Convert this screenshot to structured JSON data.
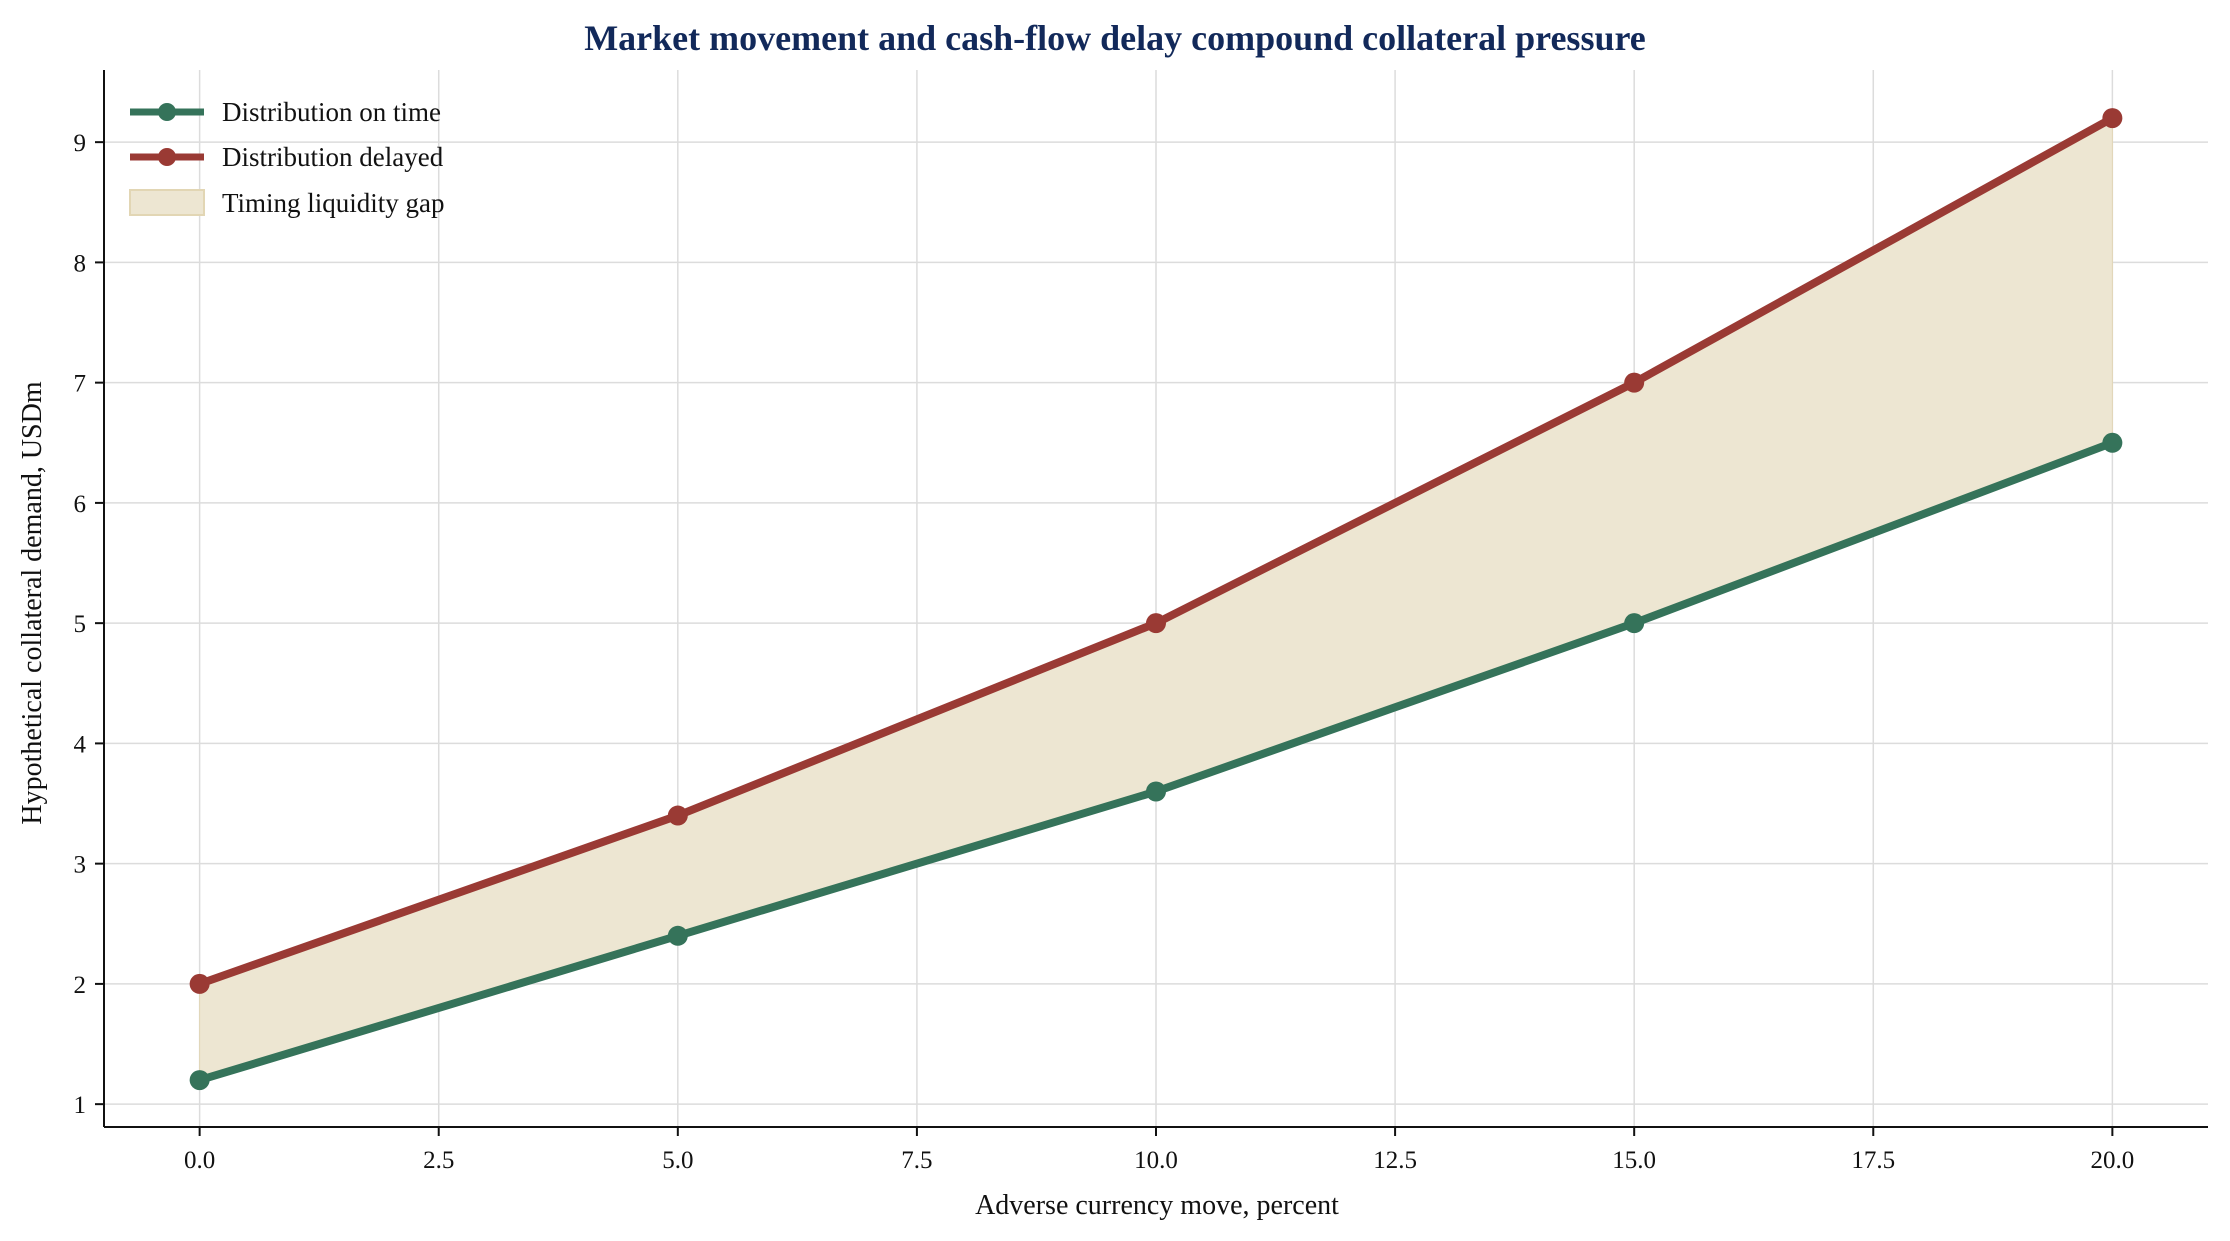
{
  "chart_data": {
    "type": "line",
    "title": "Market movement and cash-flow delay compound collateral pressure",
    "xlabel": "Adverse currency move, percent",
    "ylabel": "Hypothetical collateral demand, USDm",
    "x": [
      0,
      5,
      10,
      15,
      20
    ],
    "xlim": [
      -1,
      21
    ],
    "ylim": [
      0.81,
      9.6
    ],
    "xticks": [
      "0.0",
      "2.5",
      "5.0",
      "7.5",
      "10.0",
      "12.5",
      "15.0",
      "17.5",
      "20.0"
    ],
    "xtick_values": [
      0,
      2.5,
      5,
      7.5,
      10,
      12.5,
      15,
      17.5,
      20
    ],
    "yticks": [
      "1",
      "2",
      "3",
      "4",
      "5",
      "6",
      "7",
      "8",
      "9"
    ],
    "ytick_values": [
      1,
      2,
      3,
      4,
      5,
      6,
      7,
      8,
      9
    ],
    "grid": true,
    "legend_position": "top-left",
    "series": [
      {
        "name": "Distribution on time",
        "values": [
          1.2,
          2.4,
          3.6,
          5.0,
          6.5
        ],
        "color": "#35735a"
      },
      {
        "name": "Distribution delayed",
        "values": [
          2.0,
          3.4,
          5.0,
          7.0,
          9.2
        ],
        "color": "#9a3a34"
      }
    ],
    "fill_between": {
      "name": "Timing liquidity gap",
      "color": "#ede6d2",
      "edge_color": "#e2d6b4"
    },
    "title_color": "#12295a",
    "grid_color": "#dcdcdc"
  }
}
